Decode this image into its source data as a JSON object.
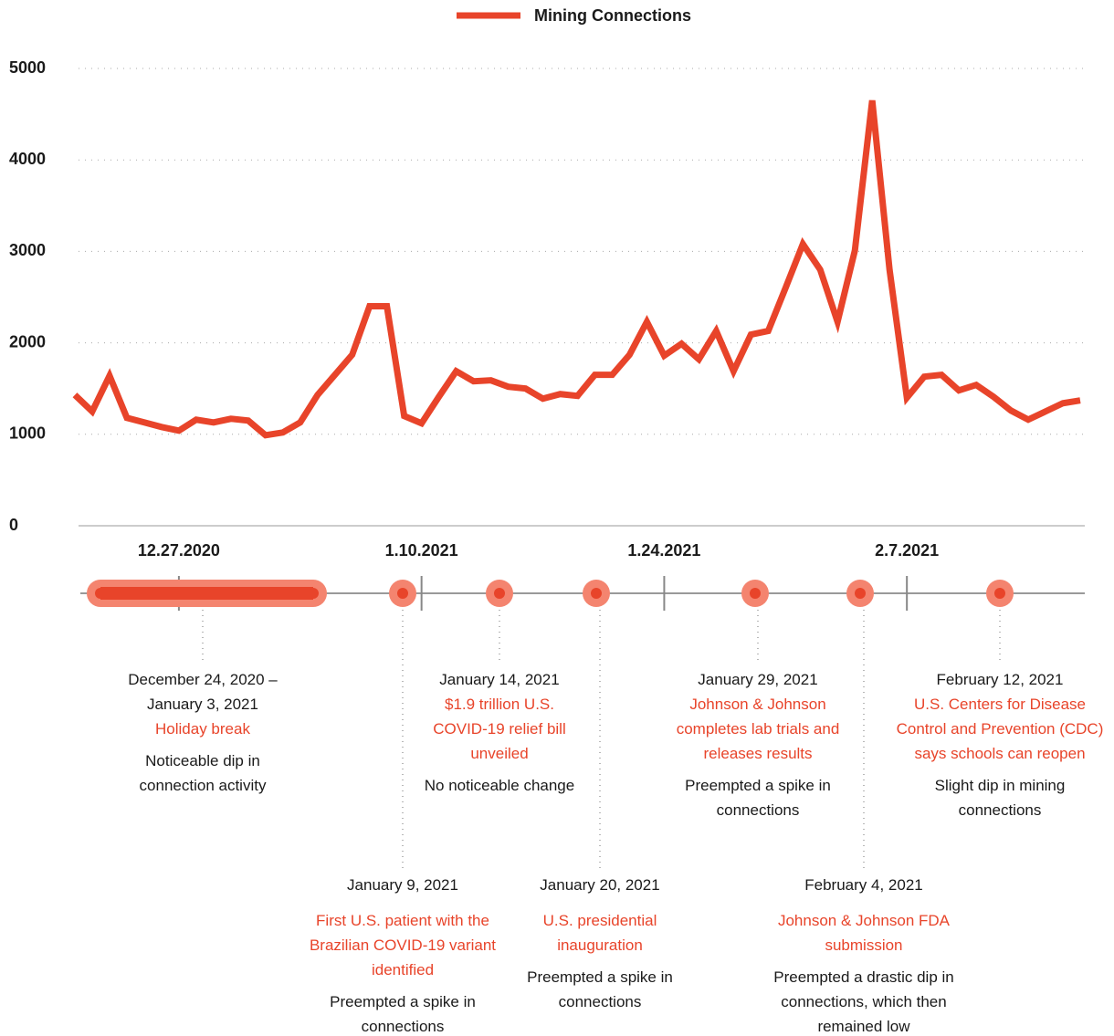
{
  "chart_data": {
    "type": "line",
    "series": [
      {
        "name": "Mining Connections",
        "color": "#e8442a",
        "values": [
          1430,
          1250,
          1640,
          1180,
          1130,
          1080,
          1040,
          1160,
          1130,
          1170,
          1150,
          990,
          1020,
          1130,
          1430,
          1650,
          1870,
          2400,
          2400,
          1200,
          1120,
          1410,
          1690,
          1580,
          1590,
          1520,
          1500,
          1390,
          1440,
          1420,
          1650,
          1650,
          1870,
          2230,
          1860,
          1990,
          1820,
          2130,
          1690,
          2090,
          2130,
          2600,
          3080,
          2800,
          2230,
          3010,
          4650,
          2800,
          1400,
          1630,
          1650,
          1480,
          1540,
          1410,
          1260,
          1160,
          1250,
          1340,
          1370
        ]
      }
    ],
    "x": [
      "12.21.2020",
      "12.22.2020",
      "12.23.2020",
      "12.24.2020",
      "12.25.2020",
      "12.26.2020",
      "12.27.2020",
      "12.28.2020",
      "12.29.2020",
      "12.30.2020",
      "12.31.2020",
      "1.1.2021",
      "1.2.2021",
      "1.3.2021",
      "1.4.2021",
      "1.5.2021",
      "1.6.2021",
      "1.7.2021",
      "1.8.2021",
      "1.9.2021",
      "1.10.2021",
      "1.11.2021",
      "1.12.2021",
      "1.13.2021",
      "1.14.2021",
      "1.15.2021",
      "1.16.2021",
      "1.17.2021",
      "1.18.2021",
      "1.19.2021",
      "1.20.2021",
      "1.21.2021",
      "1.22.2021",
      "1.23.2021",
      "1.24.2021",
      "1.25.2021",
      "1.26.2021",
      "1.27.2021",
      "1.28.2021",
      "1.29.2021",
      "1.30.2021",
      "1.31.2021",
      "2.1.2021",
      "2.2.2021",
      "2.3.2021",
      "2.4.2021",
      "2.5.2021",
      "2.6.2021",
      "2.7.2021",
      "2.8.2021",
      "2.9.2021",
      "2.10.2021",
      "2.11.2021",
      "2.12.2021",
      "2.13.2021",
      "2.14.2021",
      "2.15.2021",
      "2.16.2021",
      "2.17.2021"
    ],
    "xticks": [
      "12.27.2020",
      "1.10.2021",
      "1.24.2021",
      "2.7.2021"
    ],
    "ylim": [
      0,
      5000
    ],
    "yticks": [
      0,
      1000,
      2000,
      3000,
      4000,
      5000
    ],
    "grid": true,
    "annotations": [
      {
        "date": "December 24, 2020 – January 3, 2021",
        "title": "Holiday break",
        "note": "Noticeable dip in connection activity"
      },
      {
        "date": "January 9, 2021",
        "title": "First U.S. patient with the Brazilian COVID-19 variant identified",
        "note": "Preempted a spike in connections"
      },
      {
        "date": "January 14, 2021",
        "title": "$1.9 trillion U.S. COVID-19 relief bill unveiled",
        "note": "No noticeable change"
      },
      {
        "date": "January 20, 2021",
        "title": "U.S. presidential inauguration",
        "note": "Preempted a spike in connections"
      },
      {
        "date": "January 29, 2021",
        "title": "Johnson & Johnson completes lab trials and releases results",
        "note": "Preempted a spike in connections"
      },
      {
        "date": "February 4, 2021",
        "title": "Johnson & Johnson FDA submission",
        "note": "Preempted a drastic dip in connections, which then remained low"
      },
      {
        "date": "February 12, 2021",
        "title": "U.S. Centers for Disease Control and Prevention (CDC) says schools can reopen",
        "note": "Slight dip in mining connections"
      }
    ]
  }
}
